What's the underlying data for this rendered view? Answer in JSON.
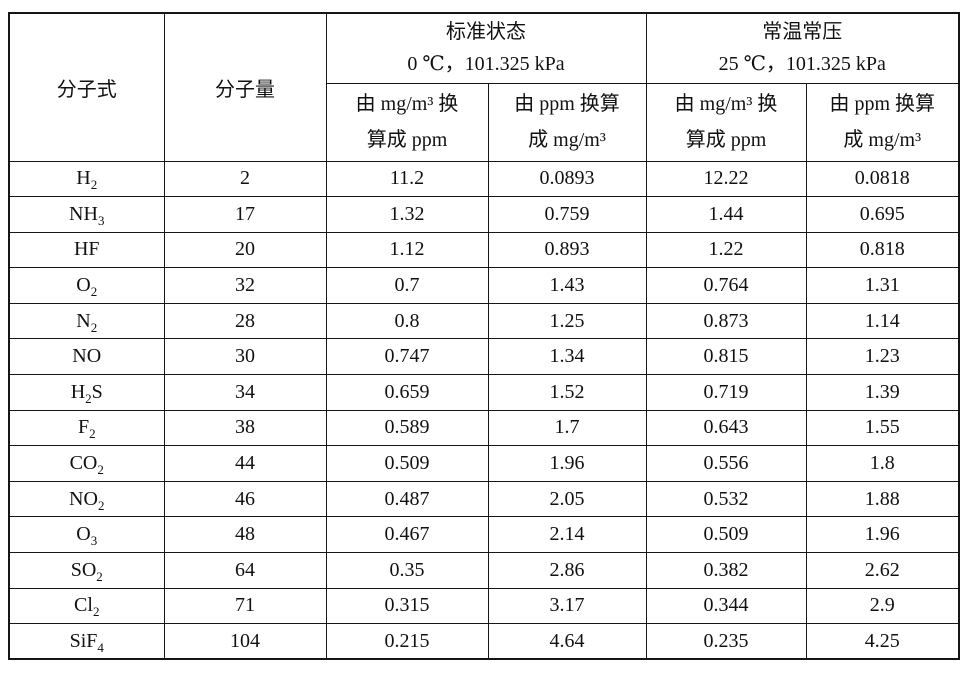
{
  "page": {
    "background_color": "#ffffff",
    "text_color": "#111111",
    "border_color": "#161616"
  },
  "table": {
    "header": {
      "formula_label": "分子式",
      "weight_label": "分子量",
      "groups": [
        {
          "title": "标准状态",
          "condition": "0 ℃，101.325 kPa"
        },
        {
          "title": "常温常压",
          "condition": "25 ℃，101.325 kPa"
        }
      ],
      "sub_columns": [
        "由 mg/m³ 换\n算成 ppm",
        "由 ppm 换算\n成 mg/m³"
      ]
    },
    "rows": [
      {
        "formula": "H2",
        "weight": "2",
        "values": [
          "11.2",
          "0.0893",
          "12.22",
          "0.0818"
        ]
      },
      {
        "formula": "NH3",
        "weight": "17",
        "values": [
          "1.32",
          "0.759",
          "1.44",
          "0.695"
        ]
      },
      {
        "formula": "HF",
        "weight": "20",
        "values": [
          "1.12",
          "0.893",
          "1.22",
          "0.818"
        ]
      },
      {
        "formula": "O2",
        "weight": "32",
        "values": [
          "0.7",
          "1.43",
          "0.764",
          "1.31"
        ]
      },
      {
        "formula": "N2",
        "weight": "28",
        "values": [
          "0.8",
          "1.25",
          "0.873",
          "1.14"
        ]
      },
      {
        "formula": "NO",
        "weight": "30",
        "values": [
          "0.747",
          "1.34",
          "0.815",
          "1.23"
        ]
      },
      {
        "formula": "H2S",
        "weight": "34",
        "values": [
          "0.659",
          "1.52",
          "0.719",
          "1.39"
        ]
      },
      {
        "formula": "F2",
        "weight": "38",
        "values": [
          "0.589",
          "1.7",
          "0.643",
          "1.55"
        ]
      },
      {
        "formula": "CO2",
        "weight": "44",
        "values": [
          "0.509",
          "1.96",
          "0.556",
          "1.8"
        ]
      },
      {
        "formula": "NO2",
        "weight": "46",
        "values": [
          "0.487",
          "2.05",
          "0.532",
          "1.88"
        ]
      },
      {
        "formula": "O3",
        "weight": "48",
        "values": [
          "0.467",
          "2.14",
          "0.509",
          "1.96"
        ]
      },
      {
        "formula": "SO2",
        "weight": "64",
        "values": [
          "0.35",
          "2.86",
          "0.382",
          "2.62"
        ]
      },
      {
        "formula": "Cl2",
        "weight": "71",
        "values": [
          "0.315",
          "3.17",
          "0.344",
          "2.9"
        ]
      },
      {
        "formula": "SiF4",
        "weight": "104",
        "values": [
          "0.215",
          "4.64",
          "0.235",
          "4.25"
        ]
      }
    ]
  }
}
